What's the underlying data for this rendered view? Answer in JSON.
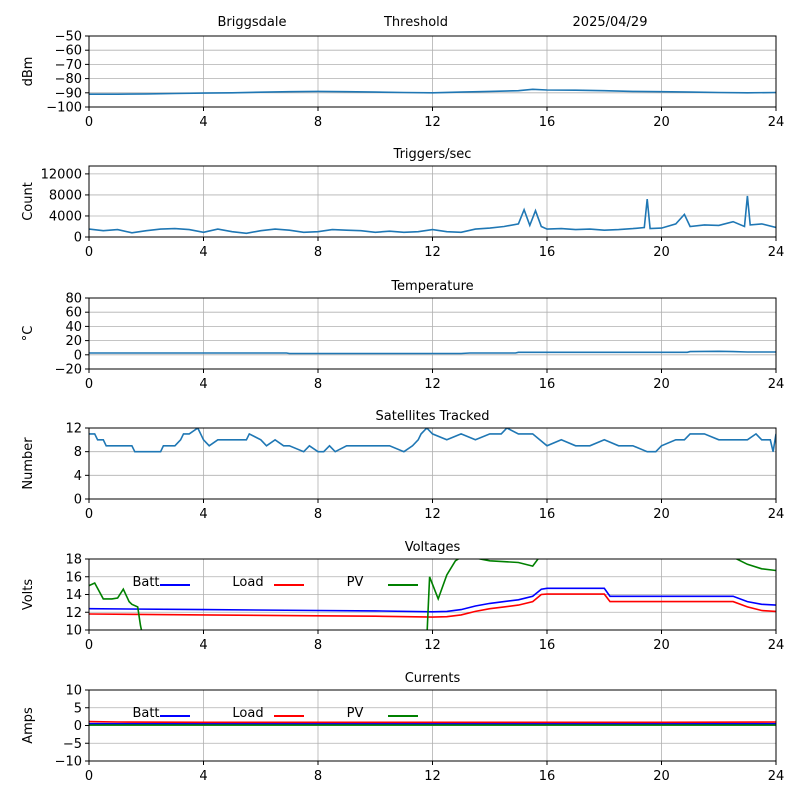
{
  "header": {
    "station": "Briggsdale",
    "title": "Threshold",
    "date": "2025/04/29"
  },
  "colors": {
    "series_default": "#1f77b4",
    "batt": "#0000ff",
    "load": "#ff0000",
    "pv": "#008000",
    "grid": "#b0b0b0"
  },
  "chart_data": [
    {
      "type": "line",
      "title": "",
      "xlabel": "",
      "ylabel": "dBm",
      "xlim": [
        0,
        24
      ],
      "ylim": [
        -100,
        -50
      ],
      "xticks": [
        0,
        4,
        8,
        12,
        16,
        20,
        24
      ],
      "yticks": [
        -100,
        -90,
        -80,
        -70,
        -60,
        -50
      ],
      "ytick_labels": [
        "−100",
        "−90",
        "−80",
        "−70",
        "−60",
        "−50"
      ],
      "grid": true,
      "series": [
        {
          "color": "#1f77b4",
          "x": [
            0,
            1,
            2,
            3,
            4,
            5,
            6,
            7,
            8,
            9,
            10,
            11,
            12,
            13,
            14,
            15,
            15.5,
            16,
            17,
            18,
            19,
            20,
            21,
            22,
            23,
            24
          ],
          "y": [
            -91,
            -91,
            -90.8,
            -90.5,
            -90.2,
            -90,
            -89.6,
            -89.2,
            -89,
            -89.2,
            -89.5,
            -89.8,
            -90,
            -89.5,
            -89,
            -88.5,
            -87.5,
            -88,
            -88.2,
            -88.5,
            -89,
            -89.2,
            -89.5,
            -89.8,
            -90,
            -89.8
          ]
        }
      ]
    },
    {
      "type": "line",
      "title": "Triggers/sec",
      "xlabel": "",
      "ylabel": "Count",
      "xlim": [
        0,
        24
      ],
      "ylim": [
        0,
        13500
      ],
      "xticks": [
        0,
        4,
        8,
        12,
        16,
        20,
        24
      ],
      "yticks": [
        0,
        4000,
        8000,
        12000
      ],
      "ytick_labels": [
        "0",
        "4000",
        "8000",
        "12000"
      ],
      "grid": true,
      "series": [
        {
          "color": "#1f77b4",
          "x": [
            0,
            0.5,
            1,
            1.5,
            2,
            2.5,
            3,
            3.5,
            4,
            4.5,
            5,
            5.5,
            6,
            6.5,
            7,
            7.5,
            8,
            8.5,
            9,
            9.5,
            10,
            10.5,
            11,
            11.5,
            12,
            12.5,
            13,
            13.5,
            14,
            14.5,
            15,
            15.2,
            15.4,
            15.6,
            15.8,
            16,
            16.5,
            17,
            17.5,
            18,
            18.5,
            19,
            19.4,
            19.5,
            19.6,
            20,
            20.5,
            20.8,
            21,
            21.5,
            22,
            22.5,
            22.9,
            23,
            23.1,
            23.5,
            24
          ],
          "y": [
            1500,
            1200,
            1400,
            800,
            1200,
            1500,
            1600,
            1400,
            900,
            1500,
            1000,
            700,
            1200,
            1500,
            1300,
            900,
            1000,
            1400,
            1300,
            1200,
            900,
            1100,
            900,
            1000,
            1400,
            1000,
            900,
            1500,
            1700,
            2000,
            2500,
            5200,
            2200,
            5000,
            2000,
            1500,
            1600,
            1400,
            1500,
            1300,
            1400,
            1600,
            1800,
            7200,
            1600,
            1700,
            2500,
            4300,
            2000,
            2300,
            2200,
            2900,
            2000,
            7800,
            2300,
            2500,
            1800
          ]
        }
      ]
    },
    {
      "type": "line",
      "title": "Temperature",
      "xlabel": "",
      "ylabel": "°C",
      "xlim": [
        0,
        24
      ],
      "ylim": [
        -20,
        80
      ],
      "xticks": [
        0,
        4,
        8,
        12,
        16,
        20,
        24
      ],
      "yticks": [
        -20,
        0,
        20,
        40,
        60,
        80
      ],
      "ytick_labels": [
        "−20",
        "0",
        "20",
        "40",
        "60",
        "80"
      ],
      "grid": true,
      "series": [
        {
          "color": "#1f77b4",
          "x": [
            0,
            2,
            4,
            6,
            6.9,
            7,
            8,
            10,
            12,
            13,
            13.3,
            14,
            14.9,
            15,
            16,
            18,
            20,
            20.9,
            21,
            22,
            22.5,
            23,
            24
          ],
          "y": [
            2.5,
            2.5,
            2.5,
            2.5,
            2.5,
            1.8,
            1.8,
            1.8,
            1.8,
            1.8,
            2.5,
            2.5,
            2.5,
            3.5,
            3.5,
            3.5,
            3.5,
            3.5,
            4.5,
            5,
            4.5,
            4,
            4
          ]
        }
      ]
    },
    {
      "type": "line",
      "title": "Satellites Tracked",
      "xlabel": "",
      "ylabel": "Number",
      "xlim": [
        0,
        24
      ],
      "ylim": [
        0,
        12
      ],
      "xticks": [
        0,
        4,
        8,
        12,
        16,
        20,
        24
      ],
      "yticks": [
        0,
        4,
        8,
        12
      ],
      "ytick_labels": [
        "0",
        "4",
        "8",
        "12"
      ],
      "grid": true,
      "series": [
        {
          "color": "#1f77b4",
          "x": [
            0,
            0.2,
            0.3,
            0.5,
            0.6,
            0.7,
            0.8,
            1.5,
            1.6,
            2.5,
            2.6,
            2.7,
            3,
            3.2,
            3.3,
            3.5,
            3.8,
            4,
            4.2,
            4.5,
            5,
            5.5,
            5.6,
            6,
            6.2,
            6.5,
            6.8,
            7,
            7.5,
            7.7,
            8,
            8.2,
            8.4,
            8.6,
            9,
            9.2,
            9.8,
            10,
            10.5,
            11,
            11.3,
            11.5,
            11.6,
            11.8,
            12,
            12.5,
            13,
            13.5,
            14,
            14.4,
            14.6,
            15,
            15.5,
            16,
            16.5,
            17,
            17.5,
            18,
            18.5,
            19,
            19.5,
            19.8,
            20,
            20.5,
            20.8,
            21,
            21.5,
            22,
            22.5,
            23,
            23.3,
            23.5,
            23.8,
            23.9,
            24
          ],
          "y": [
            11,
            11,
            10,
            10,
            9,
            9,
            9,
            9,
            8,
            8,
            9,
            9,
            9,
            10,
            11,
            11,
            12,
            10,
            9,
            10,
            10,
            10,
            11,
            10,
            9,
            10,
            9,
            9,
            8,
            9,
            8,
            8,
            9,
            8,
            9,
            9,
            9,
            9,
            9,
            8,
            9,
            10,
            11,
            12,
            11,
            10,
            11,
            10,
            11,
            11,
            12,
            11,
            11,
            9,
            10,
            9,
            9,
            10,
            9,
            9,
            8,
            8,
            9,
            10,
            10,
            11,
            11,
            10,
            10,
            10,
            11,
            10,
            10,
            8,
            11
          ]
        }
      ]
    },
    {
      "type": "line",
      "title": "Voltages",
      "xlabel": "",
      "ylabel": "Volts",
      "xlim": [
        0,
        24
      ],
      "ylim": [
        10,
        18
      ],
      "xticks": [
        0,
        4,
        8,
        12,
        16,
        20,
        24
      ],
      "yticks": [
        10,
        12,
        14,
        16,
        18
      ],
      "ytick_labels": [
        "10",
        "12",
        "14",
        "16",
        "18"
      ],
      "grid": true,
      "legend": [
        "Batt",
        "Load",
        "PV"
      ],
      "legend_placement": "top, in one row",
      "series": [
        {
          "name": "Batt",
          "color": "#0000ff",
          "x": [
            0,
            4,
            8,
            10,
            12,
            12.5,
            13,
            13.5,
            14,
            14.5,
            15,
            15.5,
            15.8,
            16,
            17,
            18,
            18.2,
            20,
            22,
            22.5,
            23,
            23.5,
            24
          ],
          "y": [
            12.4,
            12.3,
            12.2,
            12.15,
            12.05,
            12.1,
            12.3,
            12.7,
            13,
            13.2,
            13.4,
            13.8,
            14.6,
            14.7,
            14.7,
            14.7,
            13.8,
            13.8,
            13.8,
            13.8,
            13.2,
            12.9,
            12.8
          ]
        },
        {
          "name": "Load",
          "color": "#ff0000",
          "x": [
            0,
            4,
            8,
            10,
            12,
            12.5,
            13,
            13.5,
            14,
            14.5,
            15,
            15.5,
            15.8,
            16,
            17,
            18,
            18.2,
            20,
            22,
            22.5,
            23,
            23.5,
            24
          ],
          "y": [
            11.8,
            11.7,
            11.6,
            11.55,
            11.45,
            11.5,
            11.7,
            12.1,
            12.4,
            12.6,
            12.8,
            13.2,
            14,
            14.05,
            14.05,
            14.05,
            13.2,
            13.2,
            13.2,
            13.2,
            12.6,
            12.2,
            12.1
          ]
        },
        {
          "name": "PV",
          "color": "#008000",
          "x": [
            0,
            0.2,
            0.5,
            0.8,
            1,
            1.2,
            1.4,
            1.5,
            1.7,
            1.8,
            1.9,
            11.8,
            11.9,
            12.2,
            12.5,
            12.8,
            13,
            13.5,
            14,
            15,
            15.5,
            15.8,
            22.5,
            23,
            23.5,
            24
          ],
          "y": [
            15,
            15.3,
            13.5,
            13.5,
            13.6,
            14.6,
            13.2,
            12.9,
            12.6,
            10.5,
            9,
            9,
            16,
            13.5,
            16.2,
            17.8,
            18.2,
            18.1,
            17.8,
            17.6,
            17.2,
            18.5,
            18.2,
            17.4,
            16.9,
            16.7
          ]
        }
      ]
    },
    {
      "type": "line",
      "title": "Currents",
      "xlabel": "",
      "ylabel": "Amps",
      "xlim": [
        0,
        24
      ],
      "ylim": [
        -10,
        10
      ],
      "xticks": [
        0,
        4,
        8,
        12,
        16,
        20,
        24
      ],
      "yticks": [
        -10,
        -5,
        0,
        5,
        10
      ],
      "ytick_labels": [
        "−10",
        "−5",
        "0",
        "5",
        "10"
      ],
      "grid": true,
      "legend": [
        "Batt",
        "Load",
        "PV"
      ],
      "legend_placement": "top, in one row",
      "series": [
        {
          "name": "Batt",
          "color": "#0000ff",
          "x": [
            0,
            24
          ],
          "y": [
            0.5,
            0.5
          ]
        },
        {
          "name": "Load",
          "color": "#ff0000",
          "x": [
            0,
            1,
            4,
            8,
            12,
            16,
            20,
            24
          ],
          "y": [
            1.1,
            1.0,
            0.9,
            0.9,
            0.9,
            0.9,
            0.9,
            1.0
          ]
        },
        {
          "name": "PV",
          "color": "#008000",
          "x": [
            0,
            24
          ],
          "y": [
            0.1,
            0.1
          ]
        }
      ]
    }
  ]
}
